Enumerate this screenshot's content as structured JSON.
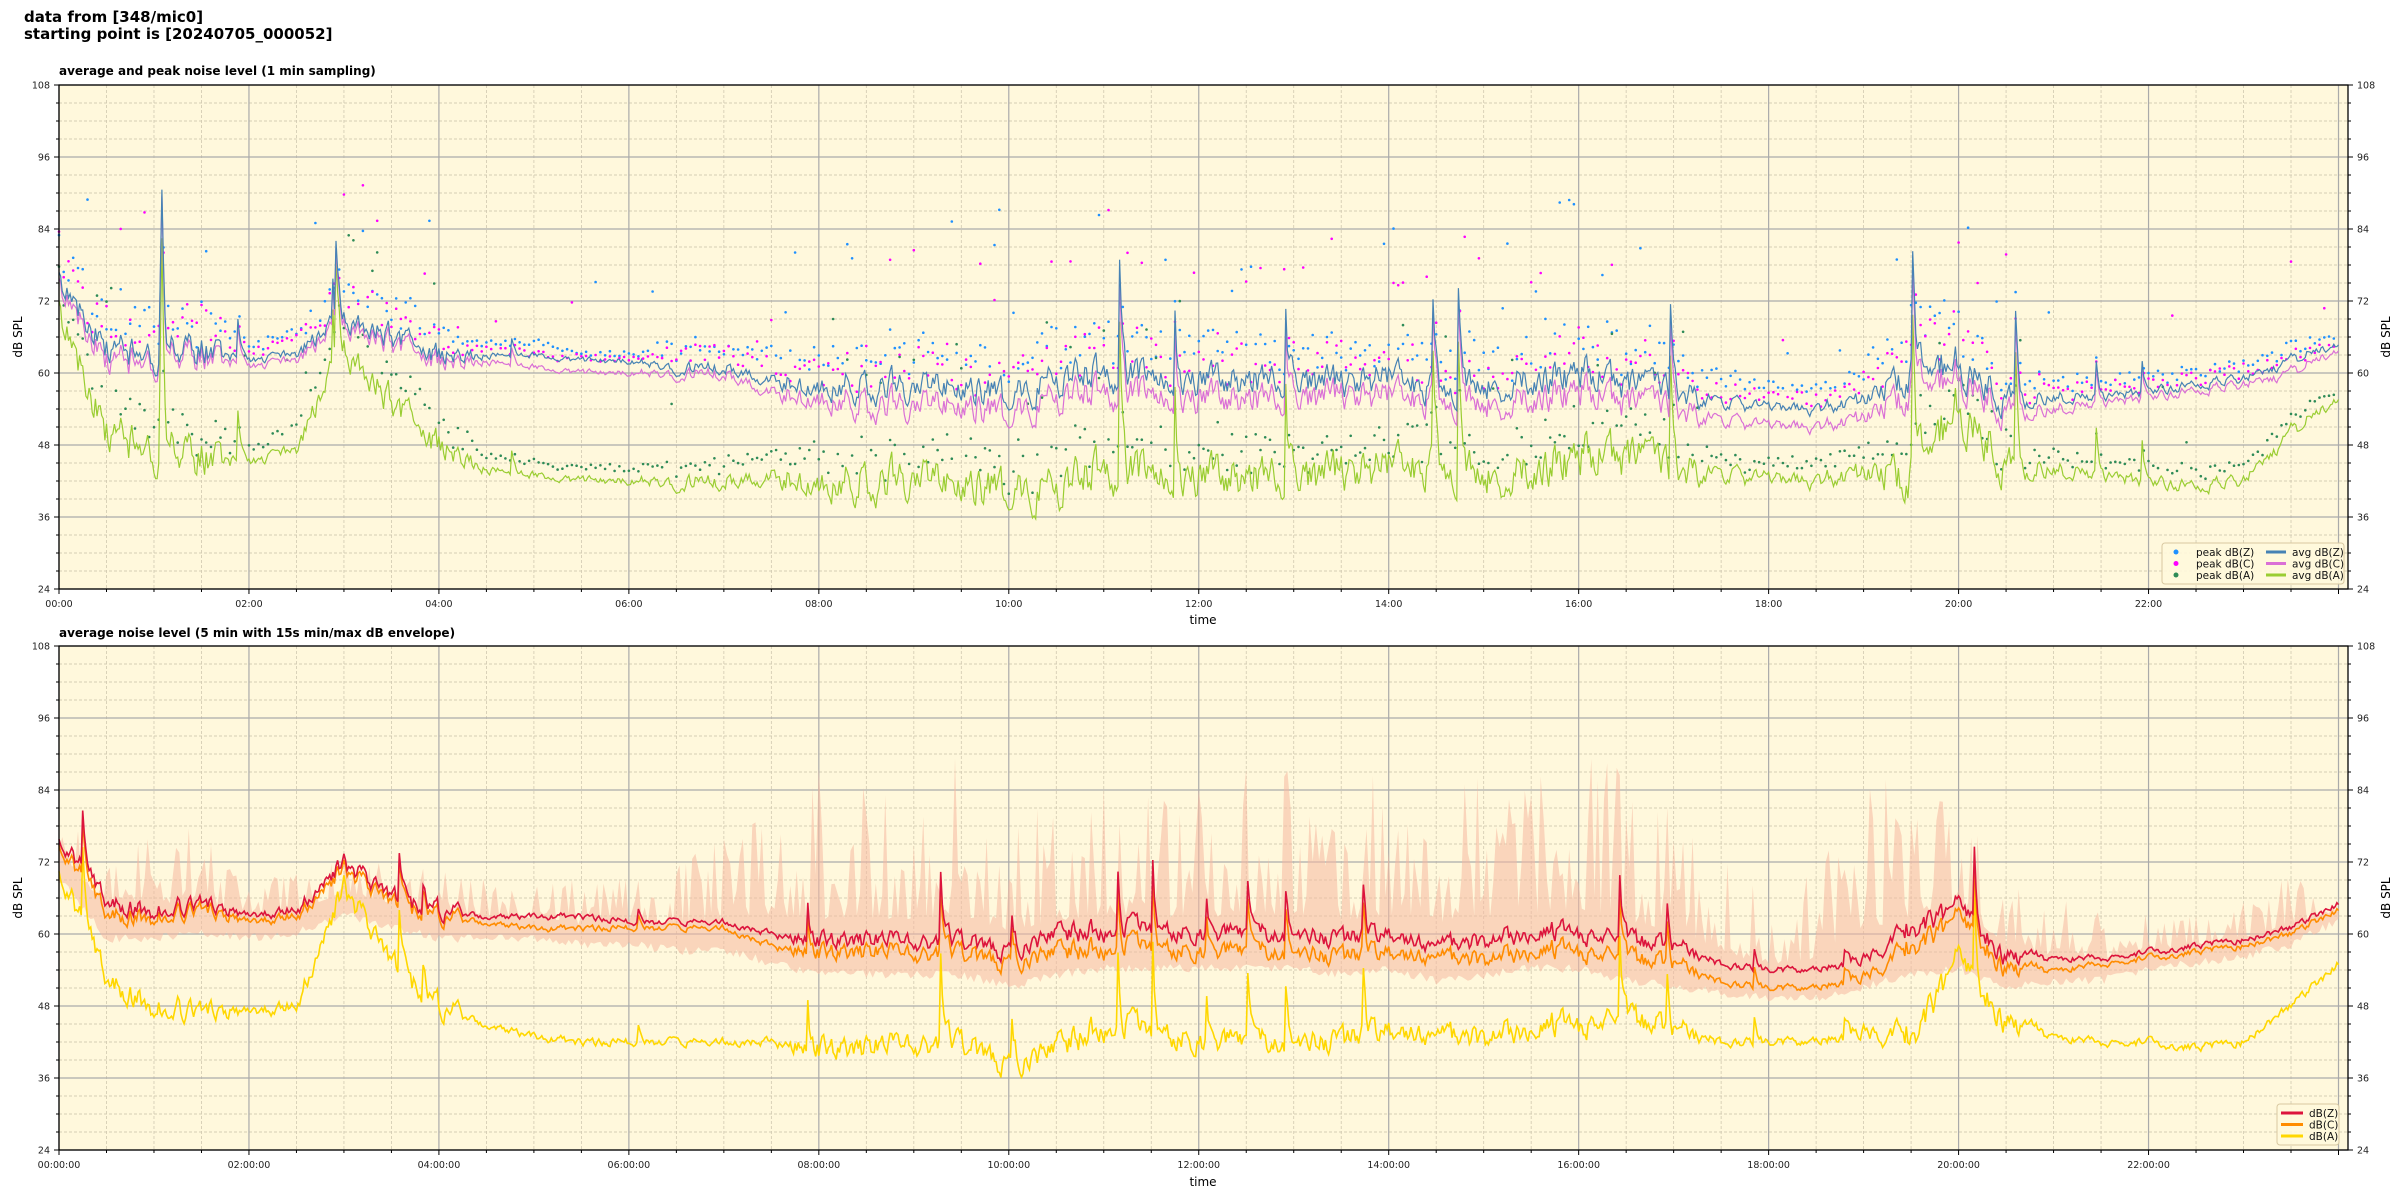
{
  "header": {
    "line1": "data from [348/mic0]",
    "line2": "starting point is [20240705_000052]"
  },
  "colors": {
    "background": "#fff8dc",
    "avg_z": "#4682b4",
    "avg_c": "#da70d6",
    "avg_a": "#9acd32",
    "peak_z": "#1e90ff",
    "peak_c": "#ff00ff",
    "peak_a": "#2e8b57",
    "db_z": "#dc143c",
    "db_c": "#ff8c00",
    "db_a": "#ffd700",
    "envelope": "#f5b8a0"
  },
  "chart_data": [
    {
      "type": "line",
      "title": "average and peak noise level (1 min sampling)",
      "xlabel": "time",
      "ylabel": "dB SPL",
      "ylim": [
        24,
        108
      ],
      "xlim_hours": [
        0,
        24.1
      ],
      "grid": true,
      "legend_position": "lower-right",
      "yticks": [
        "24",
        "36",
        "48",
        "60",
        "72",
        "84",
        "96",
        "108"
      ],
      "xticks": [
        "00:00",
        "02:00",
        "04:00",
        "06:00",
        "08:00",
        "10:00",
        "12:00",
        "14:00",
        "16:00",
        "18:00",
        "20:00",
        "22:00"
      ],
      "x_step_hours": 0.5,
      "volatility": [
        5,
        5,
        5,
        5,
        1,
        2,
        4,
        4,
        4,
        1,
        1,
        1,
        1,
        2,
        2,
        2,
        5,
        5,
        5,
        5,
        5,
        5,
        6,
        5,
        5,
        5,
        5,
        5,
        5,
        5,
        5,
        5,
        6,
        5,
        5,
        2,
        2,
        2,
        3,
        6,
        6,
        5,
        2,
        1.5,
        1.5,
        1.5,
        1.5,
        2,
        1
      ],
      "series": [
        {
          "name": "avg dB(Z)",
          "kind": "line",
          "color_key": "avg_z",
          "values": [
            76,
            64,
            63,
            64,
            62,
            63,
            69,
            66,
            63,
            63,
            63,
            62,
            62,
            61,
            61,
            59,
            58,
            58,
            58,
            58,
            56,
            59,
            60,
            60,
            59,
            59,
            59,
            58,
            59,
            57,
            58,
            59,
            60,
            58,
            57,
            55,
            54,
            54,
            56,
            60,
            62,
            56,
            56,
            56,
            57,
            58,
            59,
            62,
            65
          ]
        },
        {
          "name": "avg dB(C)",
          "kind": "line",
          "color_key": "avg_c",
          "values": [
            75,
            62,
            62,
            63,
            61,
            62,
            68,
            65,
            62,
            62,
            61,
            60,
            60,
            60,
            60,
            57,
            56,
            55,
            55,
            55,
            53,
            56,
            57,
            57,
            56,
            56,
            56,
            56,
            56,
            55,
            55,
            56,
            57,
            55,
            54,
            52,
            51,
            51,
            53,
            57,
            60,
            54,
            54,
            55,
            56,
            57,
            58,
            60,
            64
          ]
        },
        {
          "name": "avg dB(A)",
          "kind": "line",
          "color_key": "avg_a",
          "values": [
            71,
            50,
            47,
            46,
            45,
            47,
            64,
            55,
            48,
            44,
            43,
            42,
            42,
            42,
            42,
            43,
            42,
            42,
            43,
            42,
            40,
            41,
            44,
            44,
            43,
            43,
            43,
            43,
            44,
            44,
            43,
            44,
            46,
            46,
            44,
            43,
            42,
            42,
            44,
            43,
            55,
            45,
            44,
            43,
            42,
            41,
            42,
            50,
            56
          ]
        },
        {
          "name": "peak dB(Z)",
          "kind": "scatter",
          "color_key": "peak_z",
          "values": [
            80,
            68,
            67,
            68,
            64,
            66,
            73,
            70,
            66,
            65,
            65,
            63,
            63,
            64,
            64,
            63,
            62,
            62,
            63,
            62,
            60,
            63,
            65,
            64,
            63,
            63,
            63,
            62,
            63,
            61,
            62,
            63,
            65,
            62,
            61,
            58,
            57,
            57,
            60,
            65,
            68,
            60,
            59,
            58,
            59,
            60,
            61,
            64,
            66
          ]
        },
        {
          "name": "peak dB(C)",
          "kind": "scatter",
          "color_key": "peak_c",
          "values": [
            79,
            66,
            66,
            67,
            63,
            65,
            72,
            69,
            65,
            64,
            63,
            62,
            62,
            63,
            63,
            61,
            60,
            60,
            61,
            60,
            58,
            61,
            63,
            62,
            61,
            61,
            61,
            60,
            61,
            59,
            60,
            61,
            63,
            60,
            59,
            56,
            55,
            55,
            58,
            63,
            66,
            58,
            57,
            57,
            58,
            59,
            60,
            62,
            65
          ]
        },
        {
          "name": "peak dB(A)",
          "kind": "scatter",
          "color_key": "peak_a",
          "values": [
            73,
            54,
            50,
            49,
            47,
            50,
            67,
            59,
            51,
            46,
            45,
            44,
            44,
            44,
            44,
            46,
            45,
            45,
            46,
            45,
            43,
            44,
            47,
            47,
            46,
            46,
            46,
            46,
            47,
            47,
            46,
            47,
            49,
            49,
            47,
            45,
            44,
            44,
            47,
            46,
            58,
            47,
            46,
            45,
            44,
            43,
            44,
            52,
            57
          ]
        }
      ],
      "legend": [
        "peak dB(Z)",
        "peak dB(C)",
        "peak dB(A)",
        "avg dB(Z)",
        "avg dB(C)",
        "avg dB(A)"
      ]
    },
    {
      "type": "line",
      "title": "average noise level (5 min with 15s min/max dB envelope)",
      "xlabel": "time",
      "ylabel": "dB SPL",
      "ylim": [
        24,
        108
      ],
      "xlim_hours": [
        0,
        24.1
      ],
      "grid": true,
      "legend_position": "lower-right",
      "yticks": [
        "24",
        "36",
        "48",
        "60",
        "72",
        "84",
        "96",
        "108"
      ],
      "xticks": [
        "00:00:00",
        "02:00:00",
        "04:00:00",
        "06:00:00",
        "08:00:00",
        "10:00:00",
        "12:00:00",
        "14:00:00",
        "16:00:00",
        "18:00:00",
        "20:00:00",
        "22:00:00"
      ],
      "x_step_hours": 0.5,
      "volatility": [
        3,
        3,
        3,
        3,
        1,
        2,
        3,
        3,
        3,
        1,
        1,
        1,
        1,
        1,
        1,
        1,
        3,
        3,
        3,
        3,
        3,
        3,
        4,
        3,
        3,
        3,
        3,
        3,
        3,
        3,
        3,
        3,
        4,
        3,
        3,
        1,
        1,
        1,
        2,
        4,
        4,
        3,
        1,
        1,
        1,
        1,
        1,
        1,
        1
      ],
      "envelope_max": [
        84,
        78,
        80,
        78,
        70,
        72,
        76,
        74,
        72,
        70,
        70,
        69,
        70,
        72,
        76,
        84,
        88,
        88,
        88,
        90,
        86,
        86,
        88,
        86,
        86,
        88,
        88,
        86,
        88,
        88,
        88,
        88,
        92,
        90,
        86,
        72,
        70,
        72,
        86,
        90,
        94,
        76,
        66,
        64,
        64,
        64,
        66,
        70,
        66
      ],
      "envelope_min": [
        70,
        60,
        60,
        61,
        60,
        61,
        64,
        62,
        60,
        60,
        60,
        59,
        59,
        58,
        58,
        56,
        54,
        54,
        54,
        54,
        52,
        54,
        55,
        55,
        55,
        55,
        55,
        54,
        55,
        53,
        54,
        55,
        55,
        53,
        52,
        51,
        50,
        50,
        52,
        54,
        55,
        52,
        53,
        53,
        55,
        56,
        57,
        59,
        63
      ],
      "series": [
        {
          "name": "dB(Z)",
          "kind": "line",
          "color_key": "db_z",
          "values": [
            77,
            65,
            64,
            65,
            63,
            64,
            72,
            66,
            64,
            63,
            63,
            63,
            62,
            62,
            62,
            60,
            59,
            59,
            59,
            59,
            57,
            60,
            61,
            61,
            60,
            60,
            60,
            59,
            60,
            58,
            59,
            60,
            61,
            59,
            58,
            55,
            54,
            54,
            56,
            61,
            64,
            56,
            56,
            56,
            57,
            58,
            59,
            61,
            65
          ]
        },
        {
          "name": "dB(C)",
          "kind": "line",
          "color_key": "db_c",
          "values": [
            76,
            63,
            63,
            64,
            62,
            63,
            71,
            65,
            63,
            62,
            61,
            61,
            61,
            61,
            61,
            58,
            57,
            57,
            57,
            57,
            55,
            57,
            58,
            58,
            57,
            57,
            57,
            56,
            57,
            56,
            56,
            57,
            58,
            56,
            55,
            52,
            51,
            51,
            53,
            58,
            62,
            54,
            54,
            55,
            56,
            57,
            58,
            60,
            64
          ]
        },
        {
          "name": "dB(A)",
          "kind": "line",
          "color_key": "db_a",
          "values": [
            72,
            52,
            48,
            47,
            47,
            48,
            68,
            55,
            48,
            45,
            43,
            42,
            42,
            42,
            42,
            42,
            41,
            41,
            42,
            42,
            38,
            41,
            45,
            44,
            42,
            42,
            42,
            42,
            44,
            43,
            43,
            44,
            46,
            46,
            44,
            42,
            42,
            42,
            44,
            43,
            55,
            45,
            43,
            42,
            42,
            41,
            42,
            48,
            55
          ]
        }
      ],
      "legend": [
        "dB(Z)",
        "dB(C)",
        "dB(A)"
      ]
    }
  ]
}
